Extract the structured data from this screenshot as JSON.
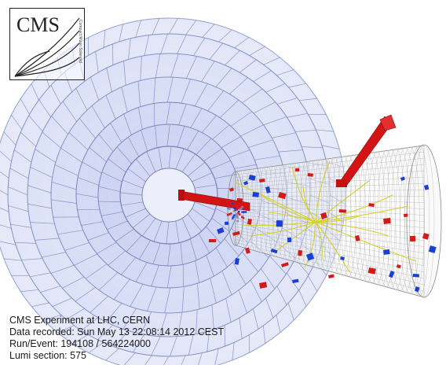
{
  "logo": {
    "text": "CMS",
    "subtitle": "Compact Muon Solenoid"
  },
  "caption": {
    "line1": "CMS Experiment at LHC, CERN",
    "line2": "Data recorded: Sun May 13 22:08:14 2012 CEST",
    "line3": "Run/Event: 194108 / 564224000",
    "line4": "Lumi section: 575"
  },
  "colors": {
    "muon_chambers": "#b9c3ec",
    "tracker_cylinder": "#9a9a9a",
    "tracks": "#d4cf10",
    "ecal_deposits": "#d11a1a",
    "hcal_deposits": "#1b3fd6",
    "jets": "#d21414"
  }
}
